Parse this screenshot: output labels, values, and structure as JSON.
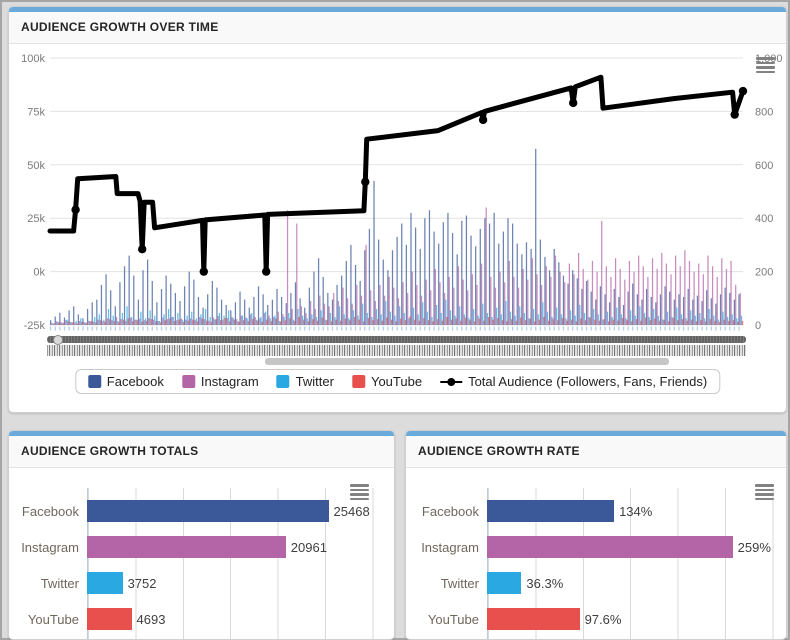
{
  "panels": {
    "growth_over_time": {
      "title": "AUDIENCE GROWTH OVER TIME",
      "legend": [
        {
          "label": "Facebook",
          "color": "#3b5998"
        },
        {
          "label": "Instagram",
          "color": "#b465a8"
        },
        {
          "label": "Twitter",
          "color": "#29a8e2"
        },
        {
          "label": "YouTube",
          "color": "#e8504e"
        },
        {
          "label": "Total Audience (Followers, Fans, Friends)",
          "color": "#000000",
          "type": "line"
        }
      ]
    },
    "totals": {
      "title": "AUDIENCE GROWTH TOTALS"
    },
    "rate": {
      "title": "AUDIENCE GROWTH RATE"
    }
  },
  "chart_data": [
    {
      "type": "mixed",
      "title": "AUDIENCE GROWTH OVER TIME",
      "grid": true,
      "left_axis": {
        "ticks": [
          "100k",
          "75k",
          "50k",
          "25k",
          "0k",
          "-25k"
        ],
        "range_k": [
          -25,
          100
        ]
      },
      "right_axis": {
        "ticks": [
          "1,000",
          "800",
          "600",
          "400",
          "200",
          "0"
        ],
        "range": [
          0,
          1000
        ]
      },
      "series": [
        {
          "name": "Facebook",
          "color": "#3b5998",
          "values": [
            18,
            32,
            46,
            28,
            55,
            70,
            40,
            25,
            60,
            85,
            95,
            150,
            190,
            130,
            70,
            160,
            220,
            260,
            185,
            95,
            205,
            245,
            165,
            85,
            135,
            185,
            155,
            120,
            90,
            145,
            200,
            170,
            105,
            65,
            115,
            165,
            140,
            95,
            75,
            55,
            85,
            125,
            95,
            65,
            105,
            145,
            115,
            75,
            95,
            135,
            105,
            82,
            120,
            160,
            100,
            65,
            140,
            200,
            250,
            180,
            120,
            95,
            150,
            185,
            240,
            300,
            225,
            165,
            280,
            360,
            540,
            320,
            245,
            205,
            280,
            330,
            380,
            300,
            420,
            365,
            285,
            400,
            430,
            350,
            305,
            385,
            420,
            345,
            265,
            390,
            410,
            335,
            295,
            360,
            400,
            380,
            420,
            305,
            350,
            400,
            380,
            305,
            265,
            310,
            285,
            660,
            320,
            255,
            205,
            285,
            235,
            185,
            155,
            205,
            175,
            135,
            165,
            125,
            95,
            145,
            115,
            85,
            135,
            105,
            75,
            125,
            155,
            115,
            95,
            135,
            105,
            85,
            115,
            145,
            125,
            95,
            115,
            105,
            135,
            95,
            110,
            90,
            130,
            100,
            80,
            115,
            140,
            120,
            95,
            115
          ]
        },
        {
          "name": "Instagram",
          "color": "#b465a8",
          "values": [
            8,
            14,
            10,
            18,
            12,
            9,
            15,
            11,
            16,
            13,
            20,
            15,
            25,
            18,
            30,
            22,
            16,
            28,
            20,
            24,
            18,
            26,
            20,
            15,
            28,
            22,
            30,
            18,
            24,
            20,
            25,
            18,
            30,
            22,
            16,
            28,
            34,
            20,
            26,
            30,
            22,
            35,
            28,
            40,
            30,
            25,
            45,
            35,
            30,
            50,
            40,
            430,
            60,
            380,
            70,
            45,
            90,
            60,
            110,
            80,
            70,
            120,
            90,
            140,
            100,
            80,
            150,
            110,
            300,
            130,
            90,
            150,
            110,
            180,
            140,
            100,
            160,
            120,
            200,
            150,
            110,
            170,
            130,
            210,
            160,
            120,
            180,
            140,
            220,
            170,
            130,
            190,
            150,
            230,
            440,
            180,
            140,
            200,
            160,
            240,
            180,
            140,
            210,
            170,
            250,
            190,
            150,
            220,
            180,
            260,
            200,
            160,
            230,
            190,
            270,
            210,
            170,
            240,
            200,
            390,
            220,
            180,
            250,
            210,
            170,
            240,
            200,
            260,
            220,
            180,
            250,
            210,
            270,
            230,
            190,
            260,
            220,
            280,
            240,
            200,
            230,
            190,
            260,
            220,
            180,
            250,
            210,
            240,
            150,
            120
          ]
        },
        {
          "name": "Twitter",
          "color": "#29a8e2",
          "values": [
            5,
            12,
            8,
            20,
            10,
            15,
            25,
            9,
            14,
            30,
            40,
            20,
            60,
            35,
            15,
            45,
            70,
            30,
            20,
            50,
            25,
            55,
            35,
            15,
            40,
            60,
            30,
            45,
            20,
            35,
            50,
            25,
            40,
            60,
            30,
            20,
            45,
            35,
            55,
            25,
            15,
            35,
            25,
            45,
            20,
            30,
            50,
            25,
            35,
            15,
            30,
            45,
            20,
            60,
            35,
            25,
            40,
            30,
            55,
            20,
            45,
            30,
            70,
            40,
            25,
            55,
            35,
            80,
            45,
            30,
            60,
            40,
            90,
            50,
            35,
            70,
            45,
            25,
            65,
            40,
            85,
            50,
            30,
            75,
            45,
            95,
            55,
            35,
            70,
            40,
            25,
            60,
            35,
            80,
            45,
            30,
            65,
            40,
            90,
            50,
            35,
            70,
            45,
            25,
            60,
            40,
            85,
            50,
            30,
            65,
            40,
            25,
            55,
            35,
            75,
            45,
            30,
            60,
            40,
            20,
            50,
            30,
            65,
            40,
            25,
            55,
            35,
            70,
            45,
            30,
            60,
            35,
            20,
            50,
            30,
            65,
            40,
            25,
            55,
            35,
            45,
            25,
            60,
            35,
            20,
            50,
            30,
            40,
            25,
            35
          ]
        },
        {
          "name": "YouTube",
          "color": "#e8504e",
          "values": [
            6,
            10,
            8,
            14,
            10,
            6,
            12,
            8,
            15,
            10,
            18,
            12,
            22,
            15,
            10,
            20,
            25,
            14,
            18,
            12,
            16,
            22,
            14,
            10,
            18,
            24,
            15,
            20,
            12,
            16,
            20,
            14,
            24,
            16,
            12,
            22,
            18,
            26,
            14,
            20,
            12,
            18,
            14,
            22,
            16,
            12,
            20,
            15,
            24,
            14,
            18,
            25,
            15,
            30,
            20,
            14,
            22,
            16,
            28,
            18,
            14,
            20,
            16,
            24,
            18,
            30,
            20,
            14,
            26,
            18,
            22,
            16,
            28,
            20,
            14,
            24,
            18,
            32,
            20,
            16,
            26,
            18,
            14,
            22,
            16,
            30,
            20,
            24,
            16,
            28,
            18,
            14,
            24,
            16,
            30,
            20,
            26,
            18,
            14,
            22,
            16,
            28,
            18,
            24,
            14,
            20,
            30,
            16,
            22,
            18,
            26,
            16,
            20,
            14,
            24,
            18,
            28,
            20,
            16,
            22,
            14,
            20,
            16,
            26,
            18,
            14,
            22,
            16,
            28,
            18,
            24,
            16,
            20,
            14,
            26,
            18,
            22,
            16,
            20,
            14,
            18,
            14,
            22,
            16,
            12,
            20,
            15,
            18,
            12,
            15
          ]
        }
      ],
      "line": {
        "name": "Total Audience (Followers, Fans, Friends)",
        "color": "#000000",
        "points_xfrac_valk": [
          [
            0.0,
            19
          ],
          [
            0.034,
            19
          ],
          [
            0.037,
            29
          ],
          [
            0.04,
            43.5
          ],
          [
            0.095,
            44.5
          ],
          [
            0.097,
            36.5
          ],
          [
            0.127,
            36.5
          ],
          [
            0.13,
            33
          ],
          [
            0.133,
            10.5
          ],
          [
            0.136,
            32.5
          ],
          [
            0.148,
            32.5
          ],
          [
            0.151,
            20.5
          ],
          [
            0.22,
            24
          ],
          [
            0.222,
            0
          ],
          [
            0.224,
            24.2
          ],
          [
            0.31,
            26.5
          ],
          [
            0.312,
            0
          ],
          [
            0.314,
            26.8
          ],
          [
            0.453,
            28.5
          ],
          [
            0.455,
            42
          ],
          [
            0.457,
            62
          ],
          [
            0.56,
            66
          ],
          [
            0.623,
            74.5
          ],
          [
            0.625,
            71
          ],
          [
            0.627,
            75
          ],
          [
            0.752,
            86
          ],
          [
            0.755,
            79
          ],
          [
            0.758,
            86.5
          ],
          [
            0.795,
            91
          ],
          [
            0.798,
            76.5
          ],
          [
            0.9,
            81
          ],
          [
            0.985,
            84
          ],
          [
            0.988,
            73.5
          ],
          [
            1.0,
            84.5
          ]
        ],
        "marker_indices": [
          2,
          8,
          13,
          16,
          19,
          23,
          26,
          32,
          33
        ]
      }
    },
    {
      "type": "bar",
      "title": "AUDIENCE GROWTH TOTALS",
      "orientation": "horizontal",
      "xmax": 31000,
      "grid_step": 5000,
      "rows": [
        {
          "label": "Facebook",
          "value": 25468,
          "display": "25468",
          "color": "#3b5998"
        },
        {
          "label": "Instagram",
          "value": 20961,
          "display": "20961",
          "color": "#b465a8"
        },
        {
          "label": "Twitter",
          "value": 3752,
          "display": "3752",
          "color": "#29a8e2"
        },
        {
          "label": "YouTube",
          "value": 4693,
          "display": "4693",
          "color": "#e8504e"
        }
      ]
    },
    {
      "type": "bar",
      "title": "AUDIENCE GROWTH RATE",
      "orientation": "horizontal",
      "xmax": 310,
      "grid_step": 50,
      "rows": [
        {
          "label": "Facebook",
          "value": 134,
          "display": "134%",
          "color": "#3b5998"
        },
        {
          "label": "Instagram",
          "value": 259,
          "display": "259%",
          "color": "#b465a8"
        },
        {
          "label": "Twitter",
          "value": 36.3,
          "display": "36.3%",
          "color": "#29a8e2"
        },
        {
          "label": "YouTube",
          "value": 97.6,
          "display": "97.6%",
          "color": "#e8504e"
        }
      ]
    }
  ]
}
